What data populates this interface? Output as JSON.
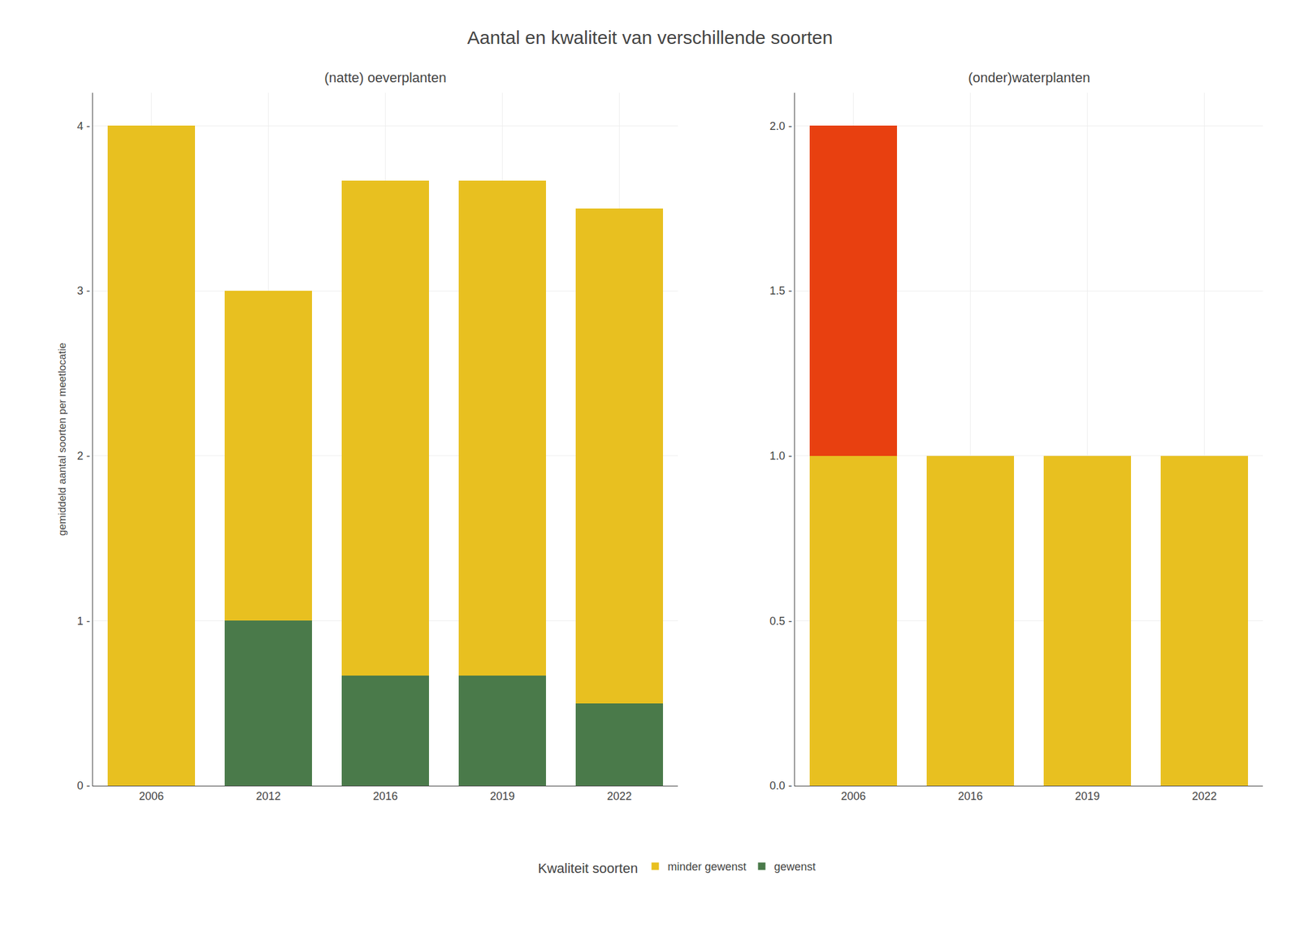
{
  "title": "Aantal en kwaliteit van verschillende soorten",
  "legend_title": "Kwaliteit soorten",
  "legend": "bottom",
  "chart_data": [
    {
      "type": "bar",
      "stacked": true,
      "grid": true,
      "title": "(natte) oeverplanten",
      "ylabel": "gemiddeld aantal soorten per meetlocatie",
      "categories": [
        "2006",
        "2012",
        "2016",
        "2019",
        "2022"
      ],
      "series": [
        {
          "name": "gewenst",
          "color": "#4A7A4A",
          "values": [
            0.0,
            1.0,
            0.667,
            0.667,
            0.5
          ]
        },
        {
          "name": "minder gewenst",
          "color": "#E8C020",
          "values": [
            4.0,
            2.0,
            3.0,
            3.0,
            3.0
          ]
        }
      ],
      "ylim": [
        0,
        4.2
      ],
      "yticks": [
        {
          "value": 0,
          "label": "0 -"
        },
        {
          "value": 1,
          "label": "1 -"
        },
        {
          "value": 2,
          "label": "2 -"
        },
        {
          "value": 3,
          "label": "3 -"
        },
        {
          "value": 4,
          "label": "4 -"
        }
      ]
    },
    {
      "type": "bar",
      "stacked": true,
      "grid": true,
      "title": "(onder)waterplanten",
      "categories": [
        "2006",
        "2016",
        "2019",
        "2022"
      ],
      "series": [
        {
          "name": "minder gewenst",
          "color": "#E8C020",
          "values": [
            1.0,
            1.0,
            1.0,
            1.0
          ]
        },
        {
          "color": "#E84010",
          "values": [
            1.0,
            0.0,
            0.0,
            0.0
          ]
        }
      ],
      "ylim": [
        0,
        2.1
      ],
      "yticks": [
        {
          "value": 0.0,
          "label": "0.0 -"
        },
        {
          "value": 0.5,
          "label": "0.5 -"
        },
        {
          "value": 1.0,
          "label": "1.0 -"
        },
        {
          "value": 1.5,
          "label": "1.5 -"
        },
        {
          "value": 2.0,
          "label": "2.0 -"
        }
      ]
    }
  ]
}
